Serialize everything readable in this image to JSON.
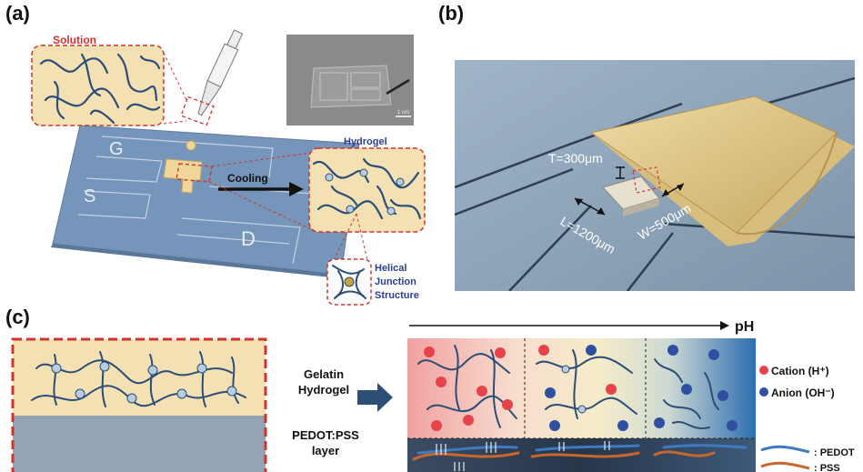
{
  "panels": {
    "a": {
      "label": "(a)",
      "solution": "Solution",
      "hydrogel": "Hydrogel",
      "cooling": "Cooling",
      "g": "G",
      "s": "S",
      "d": "D",
      "helical": [
        "Helical",
        "Junction",
        "Structure"
      ],
      "scale": "1 cm"
    },
    "b": {
      "label": "(b)",
      "t": "T=300μm",
      "l": "L=1200μm",
      "w": "W=500μm"
    },
    "c": {
      "label": "(c)",
      "gelatin": [
        "Gelatin",
        "Hydrogel"
      ],
      "pedot_layer": [
        "PEDOT:PSS",
        "layer"
      ],
      "ph": "pH",
      "cation": "Cation (H⁺)",
      "anion": "Anion (OH⁻)",
      "pedot_legend": ": PEDOT",
      "pss_legend": ": PSS"
    }
  },
  "colors": {
    "red": "#d0342c",
    "blue_text": "#2a3f8f",
    "substrate": "#6f90b6",
    "gel": "#f3e1b4",
    "chain": "#2b4d78",
    "cation": "#e9434a",
    "anion": "#2f4fa0",
    "pss": "#c8662c"
  }
}
